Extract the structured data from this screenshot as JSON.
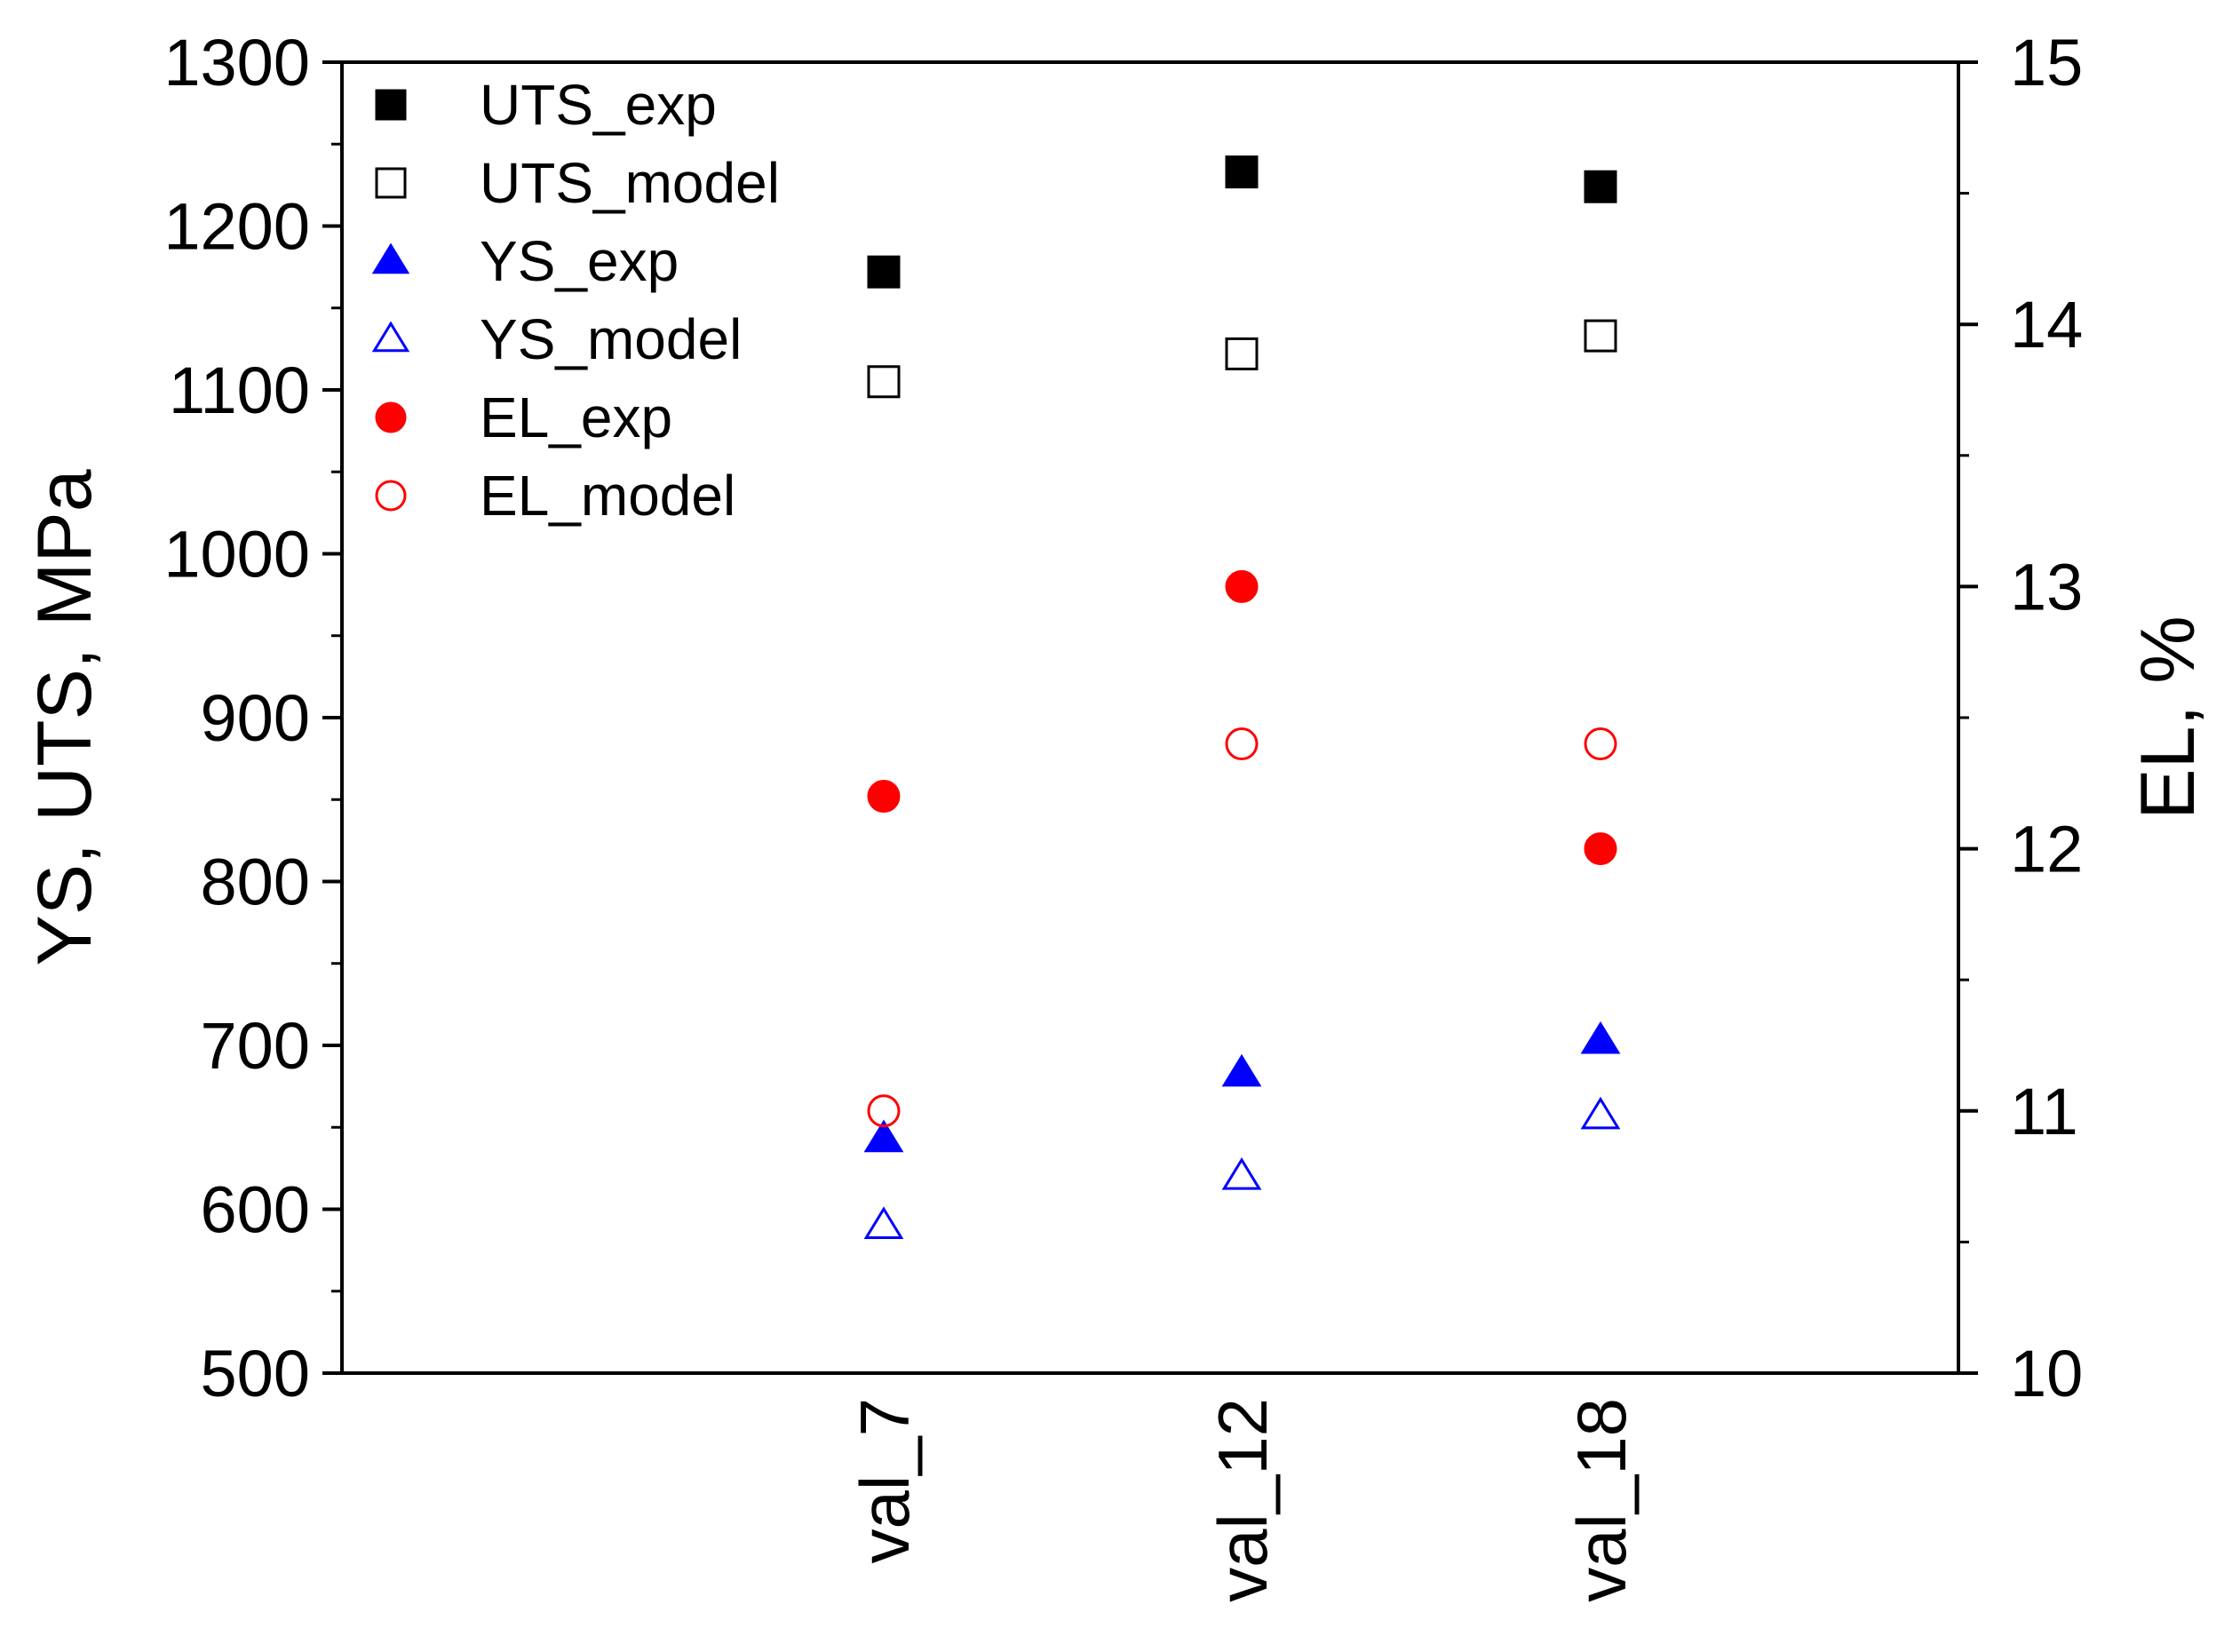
{
  "chart_data": {
    "type": "scatter",
    "categories": [
      "val_7",
      "val_12",
      "val_18"
    ],
    "left_axis": {
      "label": "YS, UTS, MPa",
      "range": [
        500,
        1300
      ],
      "ticks": [
        500,
        600,
        700,
        800,
        900,
        1000,
        1100,
        1200,
        1300
      ],
      "tick_labels": [
        "500",
        "600",
        "700",
        "800",
        "900",
        "1000",
        "1100",
        "1200",
        "1300"
      ]
    },
    "right_axis": {
      "label": "EL, %",
      "range": [
        10,
        15
      ],
      "ticks": [
        10,
        11,
        12,
        13,
        14,
        15
      ],
      "tick_labels": [
        "10",
        "11",
        "12",
        "13",
        "14",
        "15"
      ]
    },
    "legend_position": "top-left",
    "grid": false,
    "series": [
      {
        "name": "UTS_exp",
        "axis": "left",
        "marker": "square",
        "filled": true,
        "color": "#000000",
        "values": [
          1172,
          1233,
          1224
        ]
      },
      {
        "name": "UTS_model",
        "axis": "left",
        "marker": "square",
        "filled": false,
        "color": "#000000",
        "values": [
          1105,
          1122,
          1133
        ]
      },
      {
        "name": "YS_exp",
        "axis": "left",
        "marker": "triangle",
        "filled": true,
        "color": "#0000ff",
        "values": [
          643,
          683,
          703
        ]
      },
      {
        "name": "YS_model",
        "axis": "left",
        "marker": "triangle",
        "filled": false,
        "color": "#0000ff",
        "values": [
          590,
          620,
          657
        ]
      },
      {
        "name": "EL_exp",
        "axis": "right",
        "marker": "circle",
        "filled": true,
        "color": "#ff0000",
        "values": [
          12.2,
          13.0,
          12.0
        ]
      },
      {
        "name": "EL_model",
        "axis": "right",
        "marker": "circle",
        "filled": false,
        "color": "#ff0000",
        "values": [
          11.0,
          12.4,
          12.4
        ]
      }
    ]
  }
}
